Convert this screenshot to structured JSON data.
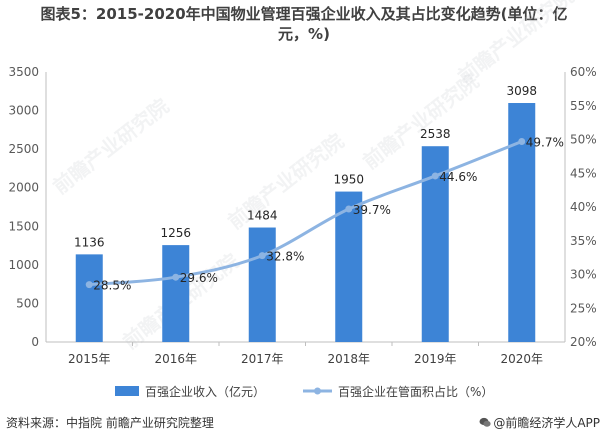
{
  "header": {
    "title_line1": "图表5：2015-2020年中国物业管理百强企业收入及其占比变化趋势(单位：亿",
    "title_line2": "元，%)"
  },
  "watermark": "前瞻产业研究院",
  "chart_data": {
    "type": "bar+line",
    "categories": [
      "2015年",
      "2016年",
      "2017年",
      "2018年",
      "2019年",
      "2020年"
    ],
    "series": [
      {
        "name": "百强企业收入（亿元）",
        "type": "bar",
        "axis": "left",
        "values": [
          1136,
          1256,
          1484,
          1950,
          2538,
          3098
        ],
        "labels": [
          "1136",
          "1256",
          "1484",
          "1950",
          "2538",
          "3098"
        ],
        "color": "#3d84d6"
      },
      {
        "name": "百强企业在管面积占比（%）",
        "type": "line",
        "axis": "right",
        "values": [
          28.5,
          29.6,
          32.8,
          39.7,
          44.6,
          49.7
        ],
        "labels": [
          "28.5%",
          "29.6%",
          "32.8%",
          "39.7%",
          "44.6%",
          "49.7%"
        ],
        "color": "#8db4e2"
      }
    ],
    "y_left": {
      "min": 0,
      "max": 3500,
      "step": 500,
      "ticks": [
        "0",
        "500",
        "1000",
        "1500",
        "2000",
        "2500",
        "3000",
        "3500"
      ]
    },
    "y_right": {
      "min": 20,
      "max": 60,
      "step": 5,
      "ticks": [
        "20%",
        "25%",
        "30%",
        "35%",
        "40%",
        "45%",
        "50%",
        "55%",
        "60%"
      ]
    },
    "grid": false,
    "legend_position": "bottom"
  },
  "footer": {
    "source": "资料来源：中指院 前瞻产业研究院整理",
    "credit": "@前瞻经济学人APP"
  }
}
